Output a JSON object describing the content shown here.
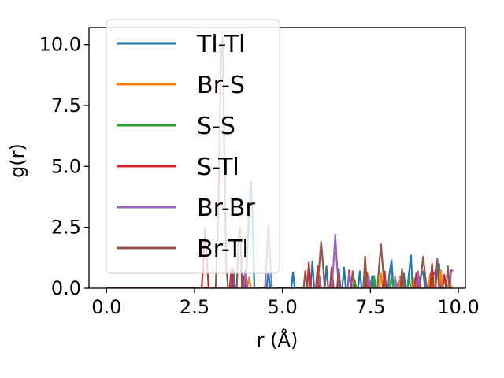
{
  "chart_data": {
    "type": "line",
    "xlabel": "r (Å)",
    "ylabel": "g(r)",
    "xlim": [
      -0.5,
      10.2
    ],
    "ylim": [
      0,
      10.7
    ],
    "xticks": [
      "0.0",
      "2.5",
      "5.0",
      "7.5",
      "10.0"
    ],
    "yticks": [
      "0.0",
      "2.5",
      "5.0",
      "7.5",
      "10.0"
    ],
    "grid": false,
    "legend": {
      "placement": "upper left",
      "entries": [
        "Tl-Tl",
        "Br-S",
        "S-S",
        "S-Tl",
        "Br-Br",
        "Br-Tl"
      ]
    },
    "series": [
      {
        "name": "Tl-Tl",
        "color": "#1f77b4",
        "x": [
          0,
          2.5,
          3.55,
          3.6,
          3.65,
          3.95,
          4.0,
          4.05,
          4.1,
          4.15,
          4.2,
          4.55,
          4.6,
          4.65,
          5.25,
          5.3,
          5.35,
          5.8,
          5.85,
          5.9,
          6.2,
          6.25,
          6.3,
          6.7,
          6.75,
          6.8,
          7.15,
          7.2,
          7.25,
          7.5,
          7.55,
          7.6,
          8.0,
          8.05,
          8.1,
          8.15,
          8.2,
          8.45,
          8.5,
          8.55,
          8.65,
          8.7,
          8.75,
          9.0,
          9.05,
          9.1,
          9.45,
          9.5,
          9.55,
          9.85
        ],
        "y": [
          0,
          0,
          0,
          0.8,
          0,
          0,
          1.5,
          3.1,
          4.4,
          3.0,
          0,
          0,
          0.7,
          0,
          0,
          0.65,
          0,
          0,
          1.1,
          0,
          0,
          0.9,
          0,
          0,
          0.85,
          0,
          0,
          0.7,
          0,
          0,
          0.5,
          0,
          0,
          0.7,
          1.15,
          0,
          0,
          0.6,
          0,
          0,
          1.35,
          0,
          0,
          0.7,
          0,
          0,
          1.0,
          0,
          0,
          0
        ]
      },
      {
        "name": "Br-S",
        "color": "#ff7f0e",
        "x": [
          0,
          3.0,
          4.0,
          4.05,
          4.1,
          5.5,
          7.3,
          7.4,
          7.5,
          7.75,
          7.8,
          7.85,
          8.3,
          8.35,
          8.4,
          8.7,
          8.75,
          8.8,
          9.15,
          9.2,
          9.25,
          9.45,
          9.5,
          9.55,
          9.7,
          9.75,
          9.8,
          9.85
        ],
        "y": [
          0,
          0,
          0,
          0.45,
          0,
          0,
          0,
          0.65,
          0,
          0,
          0.6,
          0,
          0,
          0.5,
          0,
          0,
          0.4,
          0,
          0,
          0.6,
          0,
          0,
          0.75,
          0,
          0,
          0.5,
          0,
          0
        ]
      },
      {
        "name": "S-S",
        "color": "#2ca02c",
        "x": [
          0,
          4.0,
          6.0,
          7.0,
          7.05,
          7.1,
          7.55,
          7.6,
          7.65,
          8.05,
          8.1,
          8.15,
          8.55,
          8.6,
          8.65,
          9.2,
          9.25,
          9.3,
          9.85
        ],
        "y": [
          0,
          0,
          0,
          0,
          0.35,
          0,
          0,
          0.5,
          0,
          0,
          0.45,
          0,
          0,
          0.4,
          0,
          0,
          0.5,
          0,
          0
        ]
      },
      {
        "name": "S-Tl",
        "color": "#d62728",
        "x": [
          0,
          2.6,
          2.7,
          2.75,
          2.8,
          2.85,
          2.9,
          3.0,
          3.5,
          3.55,
          3.6,
          3.85,
          3.9,
          3.95,
          5.7,
          5.75,
          5.8,
          5.95,
          6.0,
          6.05,
          6.35,
          6.4,
          6.45,
          6.85,
          6.9,
          6.95,
          7.35,
          7.4,
          7.45,
          7.85,
          7.9,
          7.95,
          8.35,
          8.4,
          8.45,
          8.75,
          8.8,
          8.85,
          9.2,
          9.25,
          9.3,
          9.55,
          9.6,
          9.65,
          9.85
        ],
        "y": [
          0,
          0,
          0,
          1.0,
          2.5,
          1.2,
          0,
          0,
          0,
          0.8,
          0,
          0,
          0.5,
          0,
          0,
          1.05,
          0,
          0,
          0.9,
          0,
          0,
          0.85,
          0,
          0,
          0.75,
          0,
          0,
          0.6,
          0,
          0,
          0.7,
          0,
          0,
          0.45,
          0,
          0,
          0.6,
          0,
          0,
          1.0,
          0,
          0,
          0.55,
          0,
          0
        ]
      },
      {
        "name": "Br-Br",
        "color": "#9467bd",
        "x": [
          0,
          3.9,
          3.95,
          4.0,
          4.05,
          4.5,
          4.55,
          4.6,
          4.65,
          4.7,
          4.75,
          6.0,
          6.05,
          6.1,
          6.4,
          6.45,
          6.5,
          6.55,
          6.6,
          6.85,
          6.9,
          6.95,
          7.4,
          7.45,
          7.5,
          8.15,
          8.2,
          8.25,
          8.8,
          8.85,
          8.9,
          9.35,
          9.4,
          9.45,
          9.75,
          9.8,
          9.85
        ],
        "y": [
          0,
          0,
          0.8,
          0,
          0,
          0,
          1.2,
          2.6,
          1.3,
          0,
          0,
          0,
          0.5,
          0,
          0,
          1.0,
          2.2,
          1.0,
          0,
          0,
          0.6,
          0,
          0,
          0.5,
          0,
          0,
          0.45,
          0,
          0,
          0.7,
          0,
          0,
          0.9,
          0,
          0,
          0.75,
          0.7
        ]
      },
      {
        "name": "Br-Tl",
        "color": "#8c564b",
        "x": [
          0,
          3.1,
          3.15,
          3.2,
          3.25,
          3.3,
          3.35,
          3.4,
          3.45,
          3.7,
          3.75,
          3.8,
          3.85,
          5.6,
          5.65,
          5.7,
          6.0,
          6.05,
          6.1,
          6.15,
          6.2,
          6.55,
          6.6,
          6.65,
          6.95,
          7.0,
          7.05,
          7.3,
          7.35,
          7.4,
          7.7,
          7.75,
          7.8,
          7.85,
          7.9,
          8.35,
          8.4,
          8.45,
          8.9,
          8.95,
          9.0,
          9.05,
          9.1,
          9.35,
          9.4,
          9.45,
          9.65,
          9.7,
          9.75,
          9.85
        ],
        "y": [
          0,
          0,
          2.0,
          5.0,
          9.5,
          10.3,
          5.0,
          1.0,
          0,
          0,
          2.0,
          2.5,
          0,
          0,
          0.7,
          0,
          0,
          1.0,
          1.9,
          1.0,
          0,
          0,
          0.8,
          0,
          0,
          0.7,
          0,
          0,
          1.3,
          0,
          0,
          1.0,
          1.8,
          0.9,
          0,
          0,
          0.8,
          0,
          0,
          0.7,
          1.3,
          0.6,
          0,
          0,
          1.2,
          0,
          0,
          0.9,
          0,
          0
        ]
      }
    ]
  }
}
